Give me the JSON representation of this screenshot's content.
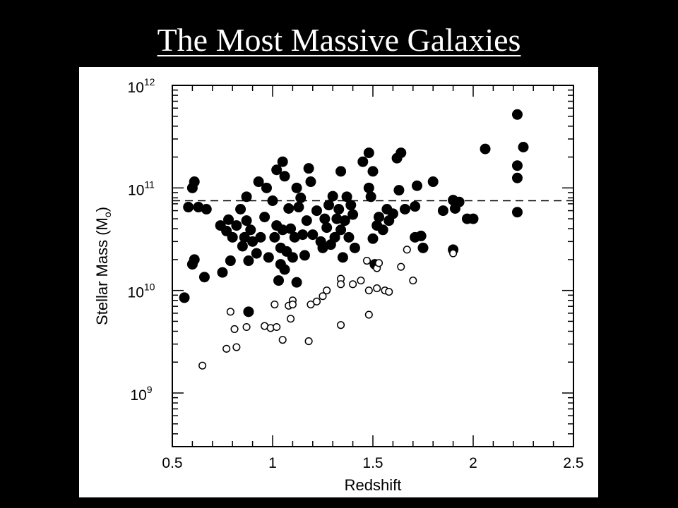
{
  "slide": {
    "title": "The Most Massive Galaxies"
  },
  "colors": {
    "background": "#000000",
    "title": "#ffffff",
    "panel": "#ffffff",
    "ink": "#000000"
  },
  "chart_data": {
    "type": "scatter",
    "title": "",
    "xlabel": "Redshift",
    "ylabel_main": "Stellar Mass (M",
    "ylabel_sub": "o",
    "ylabel_close": ")",
    "xlim": [
      0.5,
      2.5
    ],
    "ylim": [
      300000000,
      1000000000000
    ],
    "yscale": "log",
    "x_ticks": [
      {
        "value": 0.5,
        "label": "0.5"
      },
      {
        "value": 1.0,
        "label": "1"
      },
      {
        "value": 1.5,
        "label": "1.5"
      },
      {
        "value": 2.0,
        "label": "2"
      },
      {
        "value": 2.5,
        "label": "2.5"
      }
    ],
    "y_ticks": [
      {
        "value": 1000000000,
        "base": "10",
        "exp": "9"
      },
      {
        "value": 10000000000,
        "base": "10",
        "exp": "10"
      },
      {
        "value": 100000000000,
        "base": "10",
        "exp": "11"
      },
      {
        "value": 1000000000000,
        "base": "10",
        "exp": "12"
      }
    ],
    "reference_line": {
      "y": 75000000000,
      "style": "dashed"
    },
    "grid": false,
    "legend": "none",
    "series": [
      {
        "marker": "filled-circle",
        "points": [
          [
            0.56,
            8500000000.0
          ],
          [
            0.58,
            65000000000.0
          ],
          [
            0.6,
            100000000000.0
          ],
          [
            0.61,
            115000000000.0
          ],
          [
            0.61,
            20000000000.0
          ],
          [
            0.6,
            18000000000.0
          ],
          [
            0.63,
            65000000000.0
          ],
          [
            0.66,
            13500000000.0
          ],
          [
            0.67,
            62000000000.0
          ],
          [
            0.74,
            43000000000.0
          ],
          [
            0.75,
            15000000000.0
          ],
          [
            0.77,
            38000000000.0
          ],
          [
            0.78,
            49000000000.0
          ],
          [
            0.79,
            19500000000.0
          ],
          [
            0.8,
            33000000000.0
          ],
          [
            0.82,
            43000000000.0
          ],
          [
            0.84,
            62000000000.0
          ],
          [
            0.85,
            27000000000.0
          ],
          [
            0.86,
            33000000000.0
          ],
          [
            0.87,
            48000000000.0
          ],
          [
            0.87,
            82000000000.0
          ],
          [
            0.88,
            19500000000.0
          ],
          [
            0.88,
            6200000000.0
          ],
          [
            0.89,
            39000000000.0
          ],
          [
            0.9,
            30000000000.0
          ],
          [
            0.92,
            23000000000.0
          ],
          [
            0.93,
            115000000000.0
          ],
          [
            0.94,
            33000000000.0
          ],
          [
            0.96,
            52000000000.0
          ],
          [
            0.97,
            100000000000.0
          ],
          [
            0.98,
            21000000000.0
          ],
          [
            1.0,
            75000000000.0
          ],
          [
            1.01,
            33000000000.0
          ],
          [
            1.02,
            43000000000.0
          ],
          [
            1.02,
            150000000000.0
          ],
          [
            1.03,
            12500000000.0
          ],
          [
            1.04,
            18000000000.0
          ],
          [
            1.04,
            26000000000.0
          ],
          [
            1.05,
            39000000000.0
          ],
          [
            1.05,
            180000000000.0
          ],
          [
            1.06,
            130000000000.0
          ],
          [
            1.06,
            16000000000.0
          ],
          [
            1.07,
            24000000000.0
          ],
          [
            1.08,
            63000000000.0
          ],
          [
            1.09,
            40000000000.0
          ],
          [
            1.1,
            21000000000.0
          ],
          [
            1.11,
            33000000000.0
          ],
          [
            1.12,
            100000000000.0
          ],
          [
            1.12,
            12000000000.0
          ],
          [
            1.13,
            65000000000.0
          ],
          [
            1.14,
            80000000000.0
          ],
          [
            1.15,
            35000000000.0
          ],
          [
            1.16,
            22000000000.0
          ],
          [
            1.17,
            48000000000.0
          ],
          [
            1.18,
            155000000000.0
          ],
          [
            1.19,
            115000000000.0
          ],
          [
            1.2,
            35000000000.0
          ],
          [
            1.22,
            60000000000.0
          ],
          [
            1.24,
            30000000000.0
          ],
          [
            1.25,
            26000000000.0
          ],
          [
            1.26,
            50000000000.0
          ],
          [
            1.27,
            41000000000.0
          ],
          [
            1.28,
            68000000000.0
          ],
          [
            1.29,
            28000000000.0
          ],
          [
            1.3,
            83000000000.0
          ],
          [
            1.31,
            33000000000.0
          ],
          [
            1.32,
            50000000000.0
          ],
          [
            1.33,
            62000000000.0
          ],
          [
            1.34,
            145000000000.0
          ],
          [
            1.34,
            39000000000.0
          ],
          [
            1.35,
            21000000000.0
          ],
          [
            1.36,
            48000000000.0
          ],
          [
            1.37,
            82000000000.0
          ],
          [
            1.38,
            33000000000.0
          ],
          [
            1.39,
            68000000000.0
          ],
          [
            1.4,
            55000000000.0
          ],
          [
            1.41,
            26000000000.0
          ],
          [
            1.45,
            180000000000.0
          ],
          [
            1.48,
            220000000000.0
          ],
          [
            1.48,
            100000000000.0
          ],
          [
            1.49,
            82000000000.0
          ],
          [
            1.5,
            145000000000.0
          ],
          [
            1.5,
            32000000000.0
          ],
          [
            1.51,
            18000000000.0
          ],
          [
            1.52,
            43000000000.0
          ],
          [
            1.53,
            52000000000.0
          ],
          [
            1.55,
            39000000000.0
          ],
          [
            1.57,
            62000000000.0
          ],
          [
            1.58,
            48000000000.0
          ],
          [
            1.6,
            56000000000.0
          ],
          [
            1.62,
            195000000000.0
          ],
          [
            1.63,
            95000000000.0
          ],
          [
            1.64,
            220000000000.0
          ],
          [
            1.66,
            62000000000.0
          ],
          [
            1.71,
            66000000000.0
          ],
          [
            1.71,
            33000000000.0
          ],
          [
            1.72,
            105000000000.0
          ],
          [
            1.74,
            34000000000.0
          ],
          [
            1.75,
            26000000000.0
          ],
          [
            1.8,
            115000000000.0
          ],
          [
            1.85,
            60000000000.0
          ],
          [
            1.9,
            76000000000.0
          ],
          [
            1.91,
            63000000000.0
          ],
          [
            1.9,
            25000000000.0
          ],
          [
            1.93,
            73000000000.0
          ],
          [
            1.97,
            50000000000.0
          ],
          [
            2.0,
            50000000000.0
          ],
          [
            2.06,
            240000000000.0
          ],
          [
            2.22,
            520000000000.0
          ],
          [
            2.22,
            165000000000.0
          ],
          [
            2.22,
            125000000000.0
          ],
          [
            2.22,
            58000000000.0
          ],
          [
            2.25,
            250000000000.0
          ]
        ]
      },
      {
        "marker": "open-circle",
        "points": [
          [
            0.65,
            1850000000.0
          ],
          [
            0.77,
            2700000000.0
          ],
          [
            0.79,
            6200000000.0
          ],
          [
            0.81,
            4200000000.0
          ],
          [
            0.82,
            2800000000.0
          ],
          [
            0.87,
            4400000000.0
          ],
          [
            0.96,
            4500000000.0
          ],
          [
            0.99,
            4300000000.0
          ],
          [
            1.02,
            4400000000.0
          ],
          [
            1.01,
            7300000000.0
          ],
          [
            1.05,
            3300000000.0
          ],
          [
            1.08,
            7100000000.0
          ],
          [
            1.09,
            5300000000.0
          ],
          [
            1.1,
            8000000000.0
          ],
          [
            1.1,
            7300000000.0
          ],
          [
            1.18,
            3200000000.0
          ],
          [
            1.19,
            7300000000.0
          ],
          [
            1.22,
            7800000000.0
          ],
          [
            1.25,
            8800000000.0
          ],
          [
            1.27,
            10000000000.0
          ],
          [
            1.34,
            13000000000.0
          ],
          [
            1.34,
            11500000000.0
          ],
          [
            1.34,
            4600000000.0
          ],
          [
            1.4,
            11500000000.0
          ],
          [
            1.44,
            12500000000.0
          ],
          [
            1.47,
            19500000000.0
          ],
          [
            1.48,
            5800000000.0
          ],
          [
            1.48,
            10000000000.0
          ],
          [
            1.52,
            10500000000.0
          ],
          [
            1.52,
            16500000000.0
          ],
          [
            1.53,
            18500000000.0
          ],
          [
            1.56,
            10000000000.0
          ],
          [
            1.58,
            9700000000.0
          ],
          [
            1.64,
            17000000000.0
          ],
          [
            1.67,
            25000000000.0
          ],
          [
            1.7,
            12500000000.0
          ],
          [
            1.9,
            23000000000.0
          ]
        ]
      }
    ]
  }
}
